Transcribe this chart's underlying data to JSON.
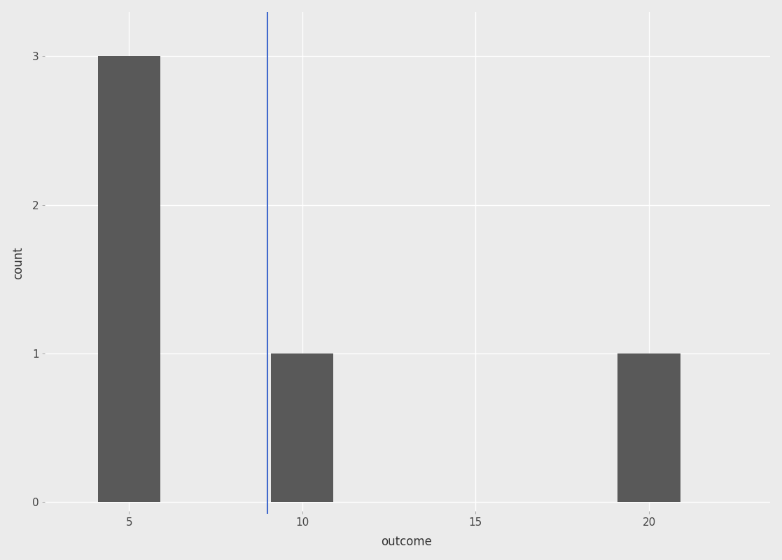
{
  "mean_value": 9.0,
  "bar_color": "#595959",
  "bar_edgecolor": "#595959",
  "mean_line_color": "#4169cc",
  "background_color": "#ebebeb",
  "grid_color": "#ffffff",
  "xlabel": "outcome",
  "ylabel": "count",
  "xlim": [
    2.5,
    23.5
  ],
  "ylim": [
    -0.08,
    3.3
  ],
  "xticks": [
    5,
    10,
    15,
    20
  ],
  "yticks": [
    0,
    1,
    2,
    3
  ],
  "axis_label_fontsize": 12,
  "tick_fontsize": 11,
  "bar_centers": [
    5,
    10,
    20
  ],
  "bar_counts": [
    3,
    1,
    1
  ],
  "bar_width": 1.8
}
